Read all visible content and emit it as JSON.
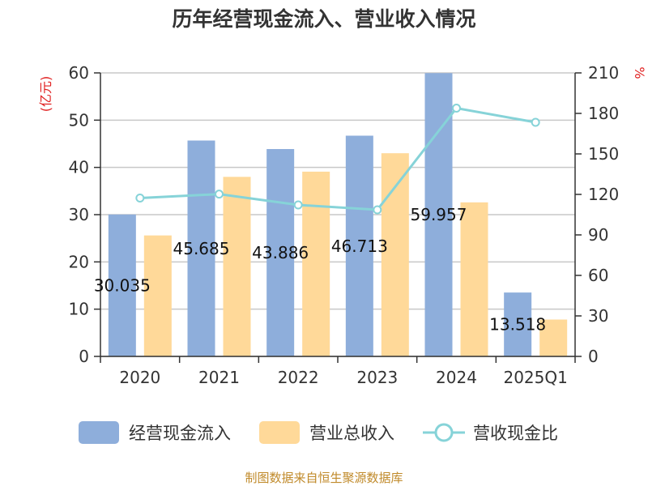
{
  "chart_data": {
    "type": "bar",
    "title": "历年经营现金流入、营业收入情况",
    "categories": [
      "2020",
      "2021",
      "2022",
      "2023",
      "2024",
      "2025Q1"
    ],
    "y_left": {
      "unit": "(亿元)",
      "ylim": [
        0,
        60
      ],
      "ticks": [
        0,
        10,
        20,
        30,
        40,
        50,
        60
      ]
    },
    "y_right": {
      "unit": "%",
      "ylim": [
        0,
        210
      ],
      "ticks": [
        0,
        30,
        60,
        90,
        120,
        150,
        180,
        210
      ]
    },
    "series": [
      {
        "name": "经营现金流入",
        "type": "bar",
        "axis": "left",
        "color": "#8eaedb",
        "values": [
          30.035,
          45.685,
          43.886,
          46.713,
          59.957,
          13.518
        ],
        "labels": [
          "30.035",
          "45.685",
          "43.886",
          "46.713",
          "59.957",
          "13.518"
        ]
      },
      {
        "name": "营业总收入",
        "type": "bar",
        "axis": "left",
        "color": "#ffd999",
        "values": [
          25.6,
          38.0,
          39.1,
          43.0,
          32.6,
          7.8
        ]
      },
      {
        "name": "营收现金比",
        "type": "line",
        "axis": "right",
        "color": "#86d3d8",
        "values": [
          117.3,
          120.2,
          112.2,
          108.6,
          183.9,
          173.4
        ]
      }
    ],
    "grid": true,
    "legend_position": "bottom"
  },
  "footer": {
    "source": "制图数据来自恒生聚源数据库"
  }
}
